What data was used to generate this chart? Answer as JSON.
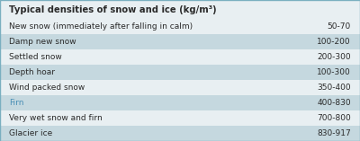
{
  "title": "Typical densities of snow and ice (kg/m³)",
  "rows": [
    {
      "label": "New snow (immediately after falling in calm)",
      "value": "50-70",
      "shaded": false
    },
    {
      "label": "Damp new snow",
      "value": "100-200",
      "shaded": true
    },
    {
      "label": "Settled snow",
      "value": "200-300",
      "shaded": false
    },
    {
      "label": "Depth hoar",
      "value": "100-300",
      "shaded": true
    },
    {
      "label": "Wind packed snow",
      "value": "350-400",
      "shaded": false
    },
    {
      "label": "Firn",
      "value": "400-830",
      "shaded": true,
      "label_color": "#4a8fb5"
    },
    {
      "label": "Very wet snow and firn",
      "value": "700-800",
      "shaded": false
    },
    {
      "label": "Glacier ice",
      "value": "830-917",
      "shaded": true
    }
  ],
  "shaded_color": "#c5d8df",
  "unshaded_color": "#e8eff2",
  "title_bg_color": "#e8eff2",
  "border_color": "#7aafc0",
  "title_fontsize": 7.2,
  "row_fontsize": 6.5,
  "title_font_weight": "bold",
  "default_label_color": "#2a2a2a",
  "value_color": "#2a2a2a",
  "figsize": [
    4.0,
    1.57
  ],
  "dpi": 100
}
